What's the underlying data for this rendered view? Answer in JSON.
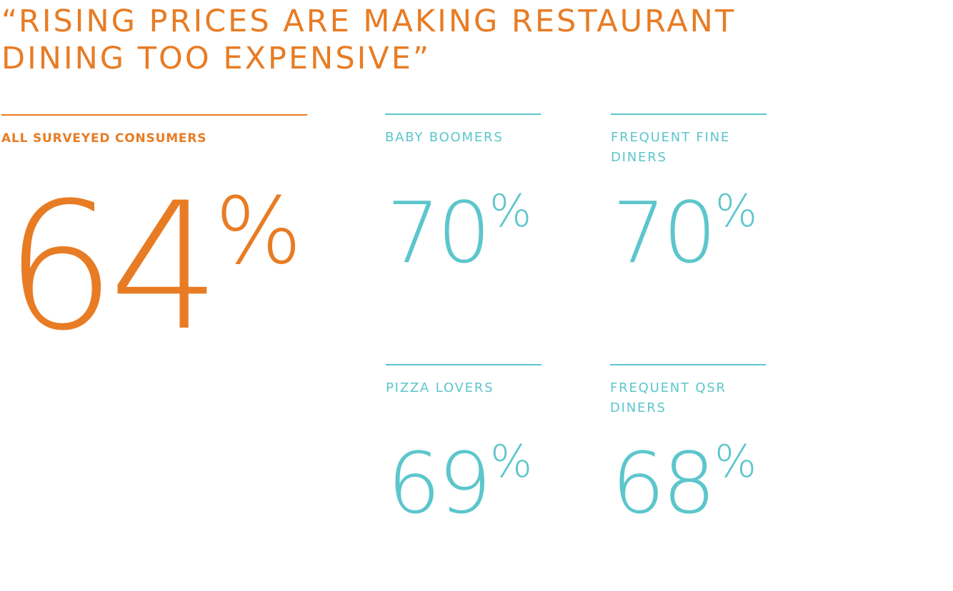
{
  "title": "“RISING PRICES ARE MAKING RESTAURANT DINING TOO EXPENSIVE”",
  "colors": {
    "orange": "#e87c24",
    "teal": "#5cc6cc"
  },
  "chart_data": {
    "type": "table",
    "title": "“RISING PRICES ARE MAKING RESTAURANT DINING TOO EXPENSIVE”",
    "unit": "%",
    "groups": [
      {
        "label": "ALL SURVEYED CONSUMERS",
        "value": 64
      },
      {
        "label": "BABY BOOMERS",
        "value": 70
      },
      {
        "label": "FREQUENT FINE DINERS",
        "value": 70
      },
      {
        "label": "PIZZA LOVERS",
        "value": 69
      },
      {
        "label": "FREQUENT QSR DINERS",
        "value": 68
      }
    ]
  }
}
